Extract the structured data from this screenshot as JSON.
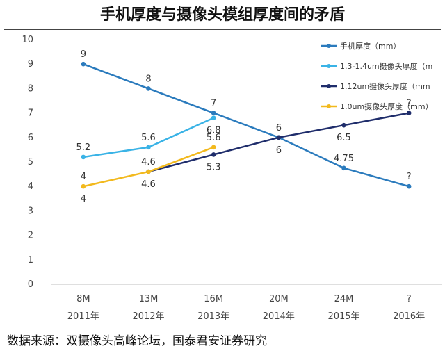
{
  "title": "手机厚度与摄像头模组厚度间的矛盾",
  "source": "数据来源：双摄像头高峰论坛，国泰君安证券研究",
  "chart_data": {
    "type": "line",
    "categories_top": [
      "8M",
      "13M",
      "16M",
      "20M",
      "24M",
      "?"
    ],
    "categories": [
      "2011年",
      "2012年",
      "2013年",
      "2014年",
      "2015年",
      "2016年"
    ],
    "ylim": [
      0,
      10
    ],
    "yticks": [
      0,
      1,
      2,
      3,
      4,
      5,
      6,
      7,
      8,
      9,
      10
    ],
    "grid": false,
    "legend_position": "top-right",
    "series": [
      {
        "name": "手机厚度（mm）",
        "color": "#2b7bbd",
        "values": [
          9,
          8,
          7,
          6,
          4.75,
          4
        ],
        "labels": [
          "9",
          "8",
          "7",
          "6",
          "4.75",
          "?"
        ],
        "label_pos": [
          "above",
          "above",
          "above",
          "below",
          "above",
          "above"
        ]
      },
      {
        "name": "1.3-1.4um摄像头厚度（m",
        "color": "#3ab3e6",
        "values": [
          5.2,
          5.6,
          6.8,
          null,
          null,
          null
        ],
        "labels": [
          "5.2",
          "5.6",
          "6.8",
          "",
          "",
          ""
        ],
        "label_pos": [
          "above",
          "above",
          "below",
          "above",
          "above",
          "above"
        ]
      },
      {
        "name": "1.12um摄像头厚度（mm",
        "color": "#1f2d6b",
        "values": [
          null,
          4.6,
          5.3,
          6,
          6.5,
          7
        ],
        "labels": [
          "",
          "4.6",
          "5.3",
          "6",
          "6.5",
          "?"
        ],
        "label_pos": [
          "above",
          "below",
          "below",
          "above",
          "below",
          "above"
        ]
      },
      {
        "name": "1.0um摄像头厚度（mm）",
        "color": "#f2b91d",
        "values": [
          4,
          4.6,
          5.6,
          null,
          null,
          null
        ],
        "labels": [
          "4",
          "4.6",
          "5.6",
          "",
          "",
          ""
        ],
        "label_pos": [
          "both",
          "above",
          "above",
          "above",
          "above",
          "above"
        ]
      }
    ]
  }
}
